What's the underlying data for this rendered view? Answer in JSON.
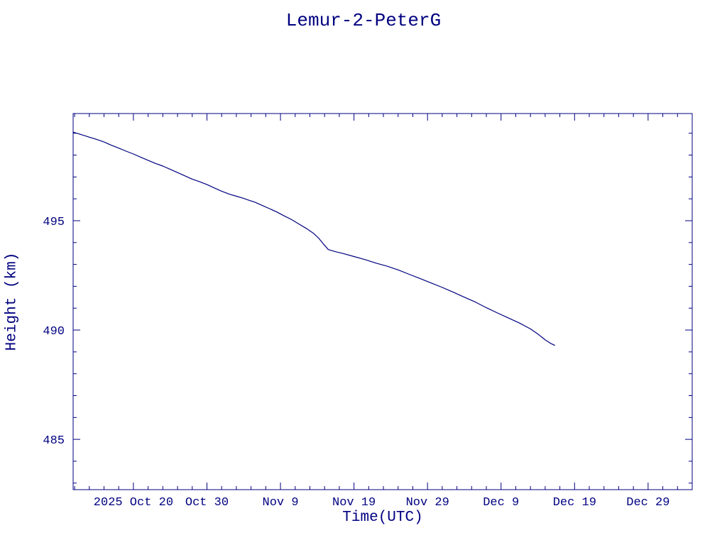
{
  "chart": {
    "title": "Lemur-2-PeterG",
    "xlabel": "Time(UTC)",
    "ylabel": "Height (km)",
    "accent_color": "#000080",
    "background_color": "#ffffff"
  },
  "chart_data": {
    "type": "line",
    "title": "Lemur-2-PeterG",
    "xlabel": "Time(UTC)",
    "ylabel": "Height (km)",
    "line_color": "#000080",
    "grid": false,
    "legend": "none",
    "x_unit": "days relative to 2025 Oct 20 tick",
    "xlim_days": [
      -8.2,
      76
    ],
    "x_ticks": [
      {
        "day": 0,
        "label": "2025 Oct 20"
      },
      {
        "day": 10,
        "label": "Oct 30"
      },
      {
        "day": 20,
        "label": "Nov 9"
      },
      {
        "day": 30,
        "label": "Nov 19"
      },
      {
        "day": 40,
        "label": "Nov 29"
      },
      {
        "day": 50,
        "label": "Dec 9"
      },
      {
        "day": 60,
        "label": "Dec 19"
      },
      {
        "day": 70,
        "label": "Dec 29"
      }
    ],
    "x_minor_tick_step_days": 2,
    "ylim": [
      482.7,
      499.9
    ],
    "y_ticks": [
      485,
      490,
      495
    ],
    "y_minor_tick_step": 1,
    "series": [
      {
        "name": "Lemur-2-PeterG height (km)",
        "points_day_km": [
          [
            -8.2,
            499.05
          ],
          [
            -7,
            498.93
          ],
          [
            -6,
            498.82
          ],
          [
            -5,
            498.72
          ],
          [
            -4,
            498.6
          ],
          [
            -3,
            498.45
          ],
          [
            -2,
            498.32
          ],
          [
            -1,
            498.18
          ],
          [
            0,
            498.05
          ],
          [
            1,
            497.9
          ],
          [
            2,
            497.76
          ],
          [
            3,
            497.62
          ],
          [
            4,
            497.5
          ],
          [
            5,
            497.35
          ],
          [
            6,
            497.2
          ],
          [
            7,
            497.05
          ],
          [
            8,
            496.9
          ],
          [
            9,
            496.78
          ],
          [
            10,
            496.65
          ],
          [
            11,
            496.5
          ],
          [
            12,
            496.35
          ],
          [
            13,
            496.22
          ],
          [
            14,
            496.12
          ],
          [
            15,
            496.02
          ],
          [
            15.5,
            495.96
          ],
          [
            16.5,
            495.85
          ],
          [
            17.5,
            495.7
          ],
          [
            18.5,
            495.55
          ],
          [
            19.5,
            495.4
          ],
          [
            20.5,
            495.22
          ],
          [
            21.5,
            495.05
          ],
          [
            22.5,
            494.85
          ],
          [
            23.5,
            494.65
          ],
          [
            24.5,
            494.42
          ],
          [
            25.2,
            494.2
          ],
          [
            25.8,
            493.95
          ],
          [
            26.5,
            493.68
          ],
          [
            27.5,
            493.58
          ],
          [
            28.5,
            493.5
          ],
          [
            30,
            493.36
          ],
          [
            31.5,
            493.22
          ],
          [
            33,
            493.06
          ],
          [
            34.5,
            492.92
          ],
          [
            36,
            492.75
          ],
          [
            37.5,
            492.55
          ],
          [
            39,
            492.35
          ],
          [
            40.5,
            492.15
          ],
          [
            42,
            491.95
          ],
          [
            43.5,
            491.73
          ],
          [
            45,
            491.5
          ],
          [
            46.5,
            491.28
          ],
          [
            48,
            491.02
          ],
          [
            49.5,
            490.78
          ],
          [
            51,
            490.55
          ],
          [
            52.5,
            490.32
          ],
          [
            54,
            490.05
          ],
          [
            55,
            489.82
          ],
          [
            56,
            489.55
          ],
          [
            56.8,
            489.38
          ],
          [
            57.3,
            489.3
          ]
        ]
      }
    ]
  }
}
